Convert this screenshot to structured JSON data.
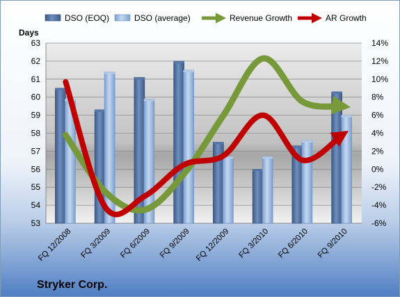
{
  "chart_data": {
    "type": "bar",
    "categories": [
      "FQ 12/2008",
      "FQ 3/2009",
      "FQ 6/2009",
      "FQ 9/2009",
      "FQ 12/2009",
      "FQ 3/2010",
      "FQ 6/2010",
      "FQ 9/2010"
    ],
    "left_axis_title": "Days",
    "ylim": [
      53,
      63
    ],
    "y_ticks": [
      "53",
      "54",
      "55",
      "56",
      "57",
      "58",
      "59",
      "60",
      "61",
      "62",
      "63"
    ],
    "y2lim": [
      -6,
      14
    ],
    "y2_ticks": [
      "-6%",
      "-4%",
      "-2%",
      "0%",
      "2%",
      "4%",
      "6%",
      "8%",
      "10%",
      "12%",
      "14%"
    ],
    "legend_position": "top",
    "grid": true,
    "series": [
      {
        "name": "DSO (EOQ)",
        "kind": "bar",
        "axis": "left",
        "color": "#4f6f9f",
        "values": [
          60.5,
          59.3,
          61.1,
          62.0,
          57.5,
          56.0,
          57.3,
          60.3
        ]
      },
      {
        "name": "DSO (average)",
        "kind": "bar",
        "axis": "left",
        "color": "#93b4da",
        "values": [
          59.9,
          61.4,
          59.9,
          61.5,
          56.7,
          56.7,
          57.6,
          59.0
        ]
      },
      {
        "name": "Revenue Growth",
        "kind": "line",
        "axis": "right",
        "unit": "%",
        "color": "#77993a",
        "values": [
          3.8,
          -2.5,
          -4.5,
          -0.5,
          6.0,
          12.3,
          7.5,
          7.0
        ]
      },
      {
        "name": "AR Growth",
        "kind": "line",
        "axis": "right",
        "unit": "%",
        "color": "#c00000",
        "values": [
          9.7,
          -4.2,
          -3.0,
          0.5,
          1.5,
          6.0,
          1.0,
          3.8
        ]
      }
    ]
  },
  "footer": {
    "company": "Stryker Corp."
  }
}
